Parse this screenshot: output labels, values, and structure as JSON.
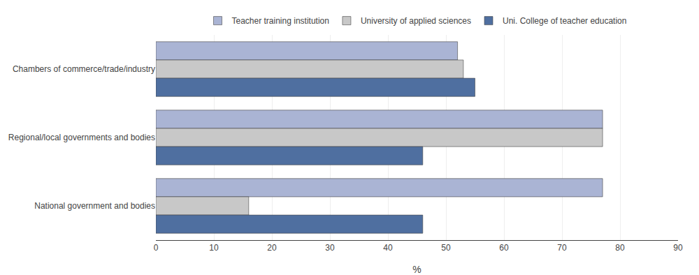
{
  "chart_data": {
    "type": "bar",
    "orientation": "horizontal",
    "categories": [
      "Chambers of commerce/trade/industry",
      "Regional/local governments and bodies",
      "National government and bodies"
    ],
    "series": [
      {
        "name": "Teacher training institution",
        "color": "#aab4d4",
        "values": [
          52,
          77,
          77
        ]
      },
      {
        "name": "University of applied sciences",
        "color": "#c8c8c8",
        "values": [
          53,
          77,
          16
        ]
      },
      {
        "name": "Uni. College of teacher education",
        "color": "#4f6fa0",
        "values": [
          55,
          46,
          46
        ]
      }
    ],
    "xlabel": "%",
    "xlim": [
      0,
      90
    ],
    "xticks": [
      0,
      10,
      20,
      30,
      40,
      50,
      60,
      70,
      80,
      90
    ],
    "grid": true,
    "legend": "top"
  }
}
